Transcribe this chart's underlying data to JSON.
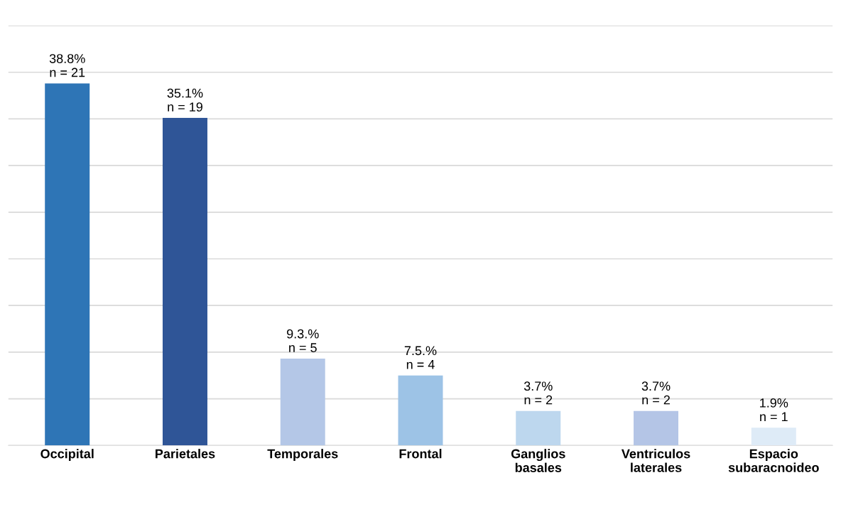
{
  "chart_data": {
    "type": "bar",
    "categories": [
      "Occipital",
      "Parietales",
      "Temporales",
      "Frontal",
      "Ganglios\nbasales",
      "Ventriculos\nlaterales",
      "Espacio\nsubaracnoideo"
    ],
    "values": [
      38.8,
      35.1,
      9.3,
      7.5,
      3.7,
      3.7,
      1.9
    ],
    "colors": [
      "#2e75b6",
      "#2f5597",
      "#b4c7e7",
      "#9dc3e6",
      "#bdd7ee",
      "#b4c5e6",
      "#deebf7"
    ],
    "value_labels": [
      "38.8%\nn = 21",
      "35.1%\nn = 19",
      "9.3.%\nn = 5",
      "7.5.%\nn = 4",
      "3.7%\nn = 2",
      "3.7%\nn = 2",
      "1.9%\nn = 1"
    ],
    "ylim": [
      0,
      45
    ],
    "yticks": [
      {
        "value": 0,
        "label": null
      },
      {
        "value": 5,
        "label": null
      },
      {
        "value": 10,
        "label": null
      },
      {
        "value": 15,
        "label": null
      },
      {
        "value": 20,
        "label": null
      },
      {
        "value": 25,
        "label": null
      },
      {
        "value": 30,
        "label": null
      },
      {
        "value": 35,
        "label": null
      },
      {
        "value": 40,
        "label": null
      },
      {
        "value": 45,
        "label": null
      }
    ],
    "grid": "y",
    "tick_labels": "x",
    "legend": false
  }
}
